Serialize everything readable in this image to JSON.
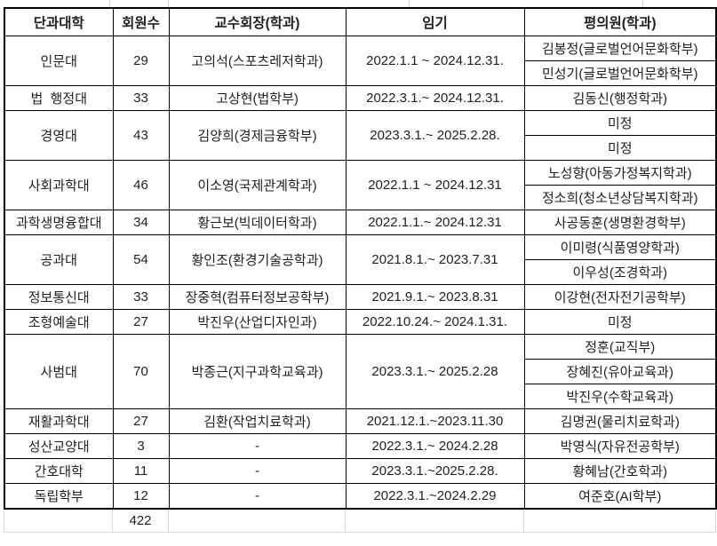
{
  "colors": {
    "background": "#ffffff",
    "table_border": "#000000",
    "sub_divider": "#b5b5b5",
    "sheet_gridline": "#d6d6d6",
    "text": "#1f1f1f"
  },
  "table": {
    "headers": [
      "단과대학",
      "회원수",
      "교수회장(학과)",
      "임기",
      "평의원(학과)"
    ],
    "rows": [
      {
        "college": "인문대",
        "members": "29",
        "president": "고의석(스포츠레저학과)",
        "term": "2022.1.1 ~ 2024.12.31.",
        "councilors": [
          "김봉정(글로벌언어문화학부)",
          "민성기(글로벌언어문화학부)"
        ]
      },
      {
        "college": "법  행정대",
        "members": "33",
        "president": "고상현(법학부)",
        "term": "2022.3.1.~ 2024.12.31.",
        "councilors": [
          "김동신(행정학과)"
        ]
      },
      {
        "college": "경영대",
        "members": "43",
        "president": "김양희(경제금융학부)",
        "term": "2023.3.1.~ 2025.2.28.",
        "councilors": [
          "미정",
          "미정"
        ]
      },
      {
        "college": "사회과학대",
        "members": "46",
        "president": "이소영(국제관계학과)",
        "term": "2022.1.1 ~ 2024.12.31",
        "councilors": [
          "노성향(아동가정복지학과)",
          "정소희(청소년상담복지학과)"
        ]
      },
      {
        "college": "과학생명융합대",
        "members": "34",
        "president": "황근보(빅데이터학과)",
        "term": "2022.1.1.~ 2024.12.31",
        "councilors": [
          "사공동훈(생명환경학부)"
        ]
      },
      {
        "college": "공과대",
        "members": "54",
        "president": "황인조(환경기술공학과)",
        "term": "2021.8.1.~ 2023.7.31",
        "councilors": [
          "이미령(식품영양학과)",
          "이우성(조경학과)"
        ]
      },
      {
        "college": "정보통신대",
        "members": "33",
        "president": "장중혁(컴퓨터정보공학부)",
        "term": "2021.9.1.~ 2023.8.31",
        "councilors": [
          "이강현(전자전기공학부)"
        ]
      },
      {
        "college": "조형예술대",
        "members": "27",
        "president": "박진우(산업디자인과)",
        "term": "2022.10.24.~ 2024.1.31.",
        "councilors": [
          "미정"
        ]
      },
      {
        "college": "사범대",
        "members": "70",
        "president": "박종근(지구과학교육과)",
        "term": "2023.3.1.~ 2025.2.28",
        "councilors": [
          "정훈(교직부)",
          "장혜진(유아교육과)",
          "박진우(수학교육과)"
        ]
      },
      {
        "college": "재활과학대",
        "members": "27",
        "president": "김환(작업치료학과)",
        "term": "2021.12.1.~2023.11.30",
        "councilors": [
          "김명권(물리치료학과)"
        ]
      },
      {
        "college": "성산교양대",
        "members": "3",
        "president": "-",
        "term": "2022.3.1.~ 2024.2.28",
        "councilors": [
          "박영식(자유전공학부)"
        ]
      },
      {
        "college": "간호대학",
        "members": "11",
        "president": "-",
        "term": "2023.3.1.~2025.2.28.",
        "councilors": [
          "황혜남(간호학과)"
        ]
      },
      {
        "college": "독립학부",
        "members": "12",
        "president": "-",
        "term": "2022.3.1.~2024.2.29",
        "councilors": [
          "여준호(AI학부)"
        ]
      }
    ],
    "total_members": "422"
  }
}
